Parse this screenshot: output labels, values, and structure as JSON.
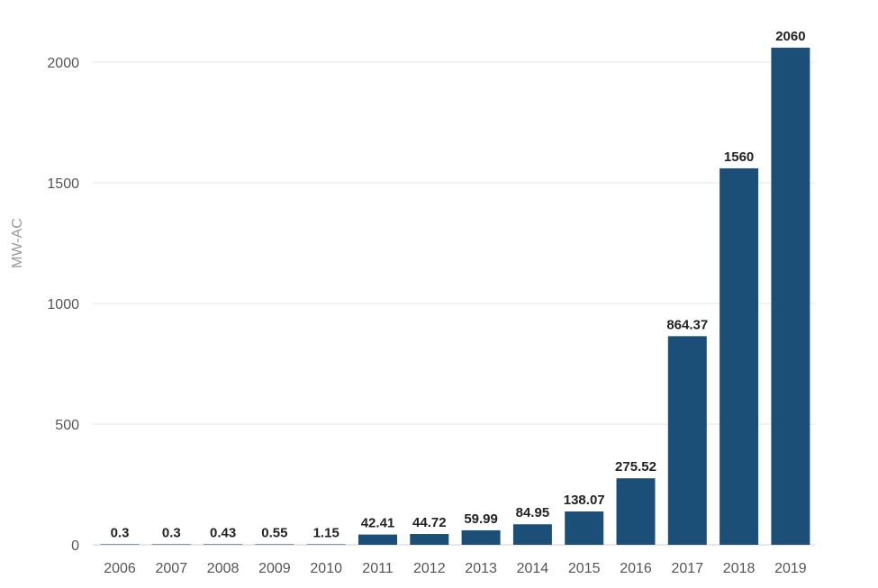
{
  "chart_data": {
    "type": "bar",
    "title": "",
    "xlabel": "",
    "ylabel": "MW-AC",
    "categories": [
      "2006",
      "2007",
      "2008",
      "2009",
      "2010",
      "2011",
      "2012",
      "2013",
      "2014",
      "2015",
      "2016",
      "2017",
      "2018",
      "2019"
    ],
    "values": [
      0.3,
      0.3,
      0.43,
      0.55,
      1.15,
      42.41,
      44.72,
      59.99,
      84.95,
      138.07,
      275.52,
      864.37,
      1560,
      2060
    ],
    "data_labels": [
      "0.3",
      "0.3",
      "0.43",
      "0.55",
      "1.15",
      "42.41",
      "44.72",
      "59.99",
      "84.95",
      "138.07",
      "275.52",
      "864.37",
      "1560",
      "2060"
    ],
    "ylim": [
      0,
      2000
    ],
    "yticks": [
      "0",
      "500",
      "1000",
      "1500",
      "2000"
    ],
    "ytick_values": [
      0,
      500,
      1000,
      1500,
      2000
    ],
    "grid": true,
    "bar_color": "#1b4f78"
  }
}
